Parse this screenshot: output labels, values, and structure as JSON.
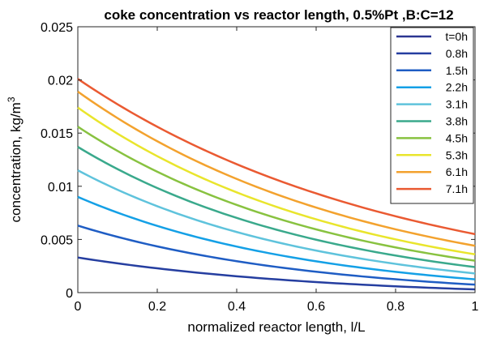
{
  "chart_data": {
    "type": "line",
    "title": "coke concentration vs reactor length, 0.5%Pt ,B:C=12",
    "xlabel": "normalized reactor length, l/L",
    "ylabel_main": "concentration, kg/m",
    "ylabel_sup": "3",
    "xlim": [
      0,
      1
    ],
    "ylim": [
      0,
      0.025
    ],
    "xticks": [
      "0",
      "0.2",
      "0.4",
      "0.6",
      "0.8",
      "1"
    ],
    "yticks": [
      "0",
      "0.005",
      "0.01",
      "0.015",
      "0.02",
      "0.025"
    ],
    "grid": false,
    "legend_position": "top-right",
    "series": [
      {
        "name": "t=0h",
        "color": "#2c3591",
        "y0": 0.0,
        "y1": 0.0
      },
      {
        "name": "0.8h",
        "color": "#253ea0",
        "y0": 0.0033,
        "y1": 0.0003
      },
      {
        "name": "1.5h",
        "color": "#1f5dc4",
        "y0": 0.0063,
        "y1": 0.00075
      },
      {
        "name": "2.2h",
        "color": "#14a0e6",
        "y0": 0.009,
        "y1": 0.00125
      },
      {
        "name": "3.1h",
        "color": "#5fc3dc",
        "y0": 0.0115,
        "y1": 0.0018
      },
      {
        "name": "3.8h",
        "color": "#3aa98c",
        "y0": 0.0137,
        "y1": 0.0024
      },
      {
        "name": "4.5h",
        "color": "#88c240",
        "y0": 0.0156,
        "y1": 0.003
      },
      {
        "name": "5.3h",
        "color": "#e9e52c",
        "y0": 0.0174,
        "y1": 0.0036
      },
      {
        "name": "6.1h",
        "color": "#f3a22e",
        "y0": 0.0189,
        "y1": 0.0044
      },
      {
        "name": "7.1h",
        "color": "#ea5a32",
        "y0": 0.0201,
        "y1": 0.0055
      }
    ]
  }
}
